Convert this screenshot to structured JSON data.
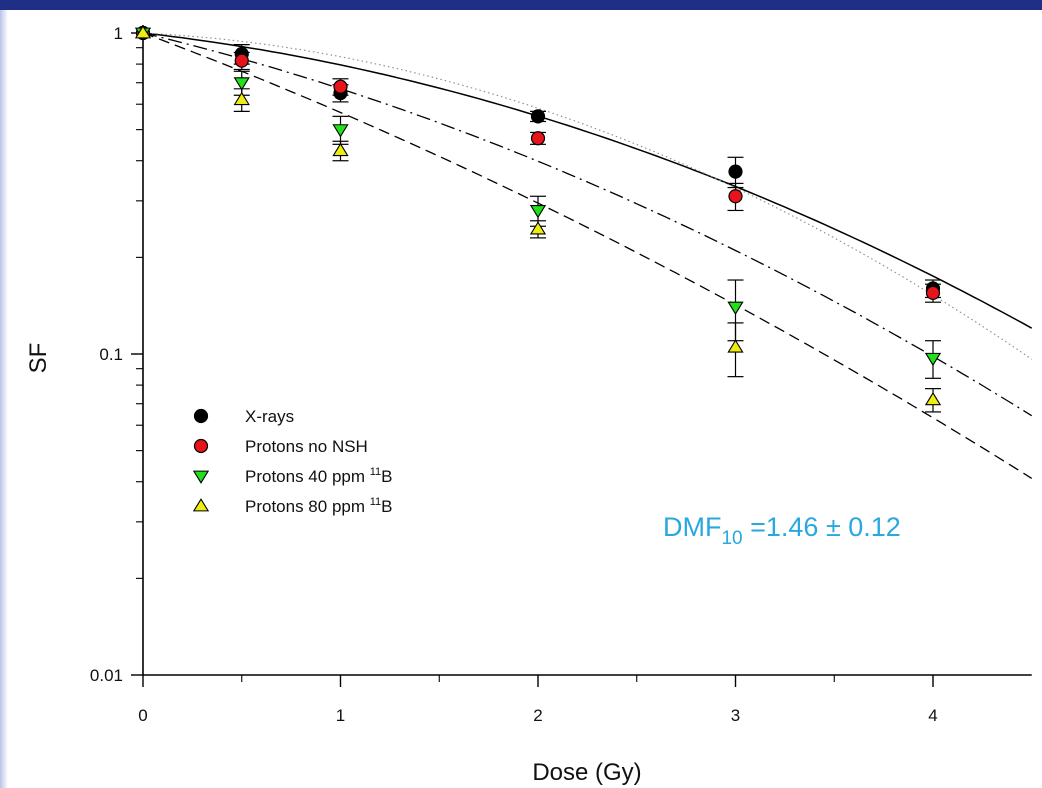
{
  "chart_data": {
    "type": "scatter",
    "xlabel": "Dose (Gy)",
    "ylabel": "SF",
    "xlim": [
      0,
      4.5
    ],
    "ylim": [
      0.01,
      1
    ],
    "yscale": "log",
    "x_ticks": [
      {
        "value": 0,
        "label": "0"
      },
      {
        "value": 1,
        "label": "1"
      },
      {
        "value": 2,
        "label": "2"
      },
      {
        "value": 3,
        "label": "3"
      },
      {
        "value": 4,
        "label": "4"
      }
    ],
    "y_ticks": [
      {
        "value": 1,
        "label": "1"
      },
      {
        "value": 0.1,
        "label": "0.1"
      },
      {
        "value": 0.01,
        "label": "0.01"
      }
    ],
    "legend_position": "left-center",
    "grid": false,
    "series": [
      {
        "name": "X-rays",
        "marker": "circle",
        "color": "#000000",
        "points": [
          {
            "x": 0,
            "y": 1.0,
            "err": 0
          },
          {
            "x": 0.5,
            "y": 0.86,
            "err": 0.06
          },
          {
            "x": 1,
            "y": 0.65,
            "err": 0.04
          },
          {
            "x": 2,
            "y": 0.55,
            "err": 0.02
          },
          {
            "x": 3,
            "y": 0.37,
            "err": 0.04
          },
          {
            "x": 4,
            "y": 0.16,
            "err": 0.01
          }
        ]
      },
      {
        "name": "Protons no NSH",
        "marker": "circle",
        "color": "#e8141b",
        "points": [
          {
            "x": 0,
            "y": 1.0,
            "err": 0
          },
          {
            "x": 0.5,
            "y": 0.82,
            "err": 0.05
          },
          {
            "x": 1,
            "y": 0.68,
            "err": 0.04
          },
          {
            "x": 2,
            "y": 0.47,
            "err": 0.02
          },
          {
            "x": 3,
            "y": 0.31,
            "err": 0.03
          },
          {
            "x": 4,
            "y": 0.155,
            "err": 0.01
          }
        ]
      },
      {
        "name": "Protons 40 ppm ¹¹B",
        "marker": "triangle-down",
        "color": "#22e01a",
        "points": [
          {
            "x": 0,
            "y": 1.0,
            "err": 0
          },
          {
            "x": 0.5,
            "y": 0.7,
            "err": 0.06
          },
          {
            "x": 1,
            "y": 0.5,
            "err": 0.05
          },
          {
            "x": 2,
            "y": 0.28,
            "err": 0.03
          },
          {
            "x": 3,
            "y": 0.14,
            "err": 0.03
          },
          {
            "x": 4,
            "y": 0.097,
            "err": 0.013
          }
        ]
      },
      {
        "name": "Protons 80 ppm ¹¹B",
        "marker": "triangle-up",
        "color": "#ecee12",
        "points": [
          {
            "x": 0,
            "y": 1.0,
            "err": 0
          },
          {
            "x": 0.5,
            "y": 0.62,
            "err": 0.05
          },
          {
            "x": 1,
            "y": 0.43,
            "err": 0.03
          },
          {
            "x": 2,
            "y": 0.245,
            "err": 0.015
          },
          {
            "x": 3,
            "y": 0.105,
            "err": 0.02
          },
          {
            "x": 4,
            "y": 0.072,
            "err": 0.006
          }
        ]
      }
    ],
    "fits": [
      {
        "style": "solid",
        "alpha": 0.16,
        "beta": 0.069
      },
      {
        "style": "dotted",
        "alpha": 0.07,
        "beta": 0.1
      },
      {
        "style": "dash-dot",
        "alpha": 0.34,
        "beta": 0.06
      },
      {
        "style": "dashed",
        "alpha": 0.53,
        "beta": 0.04
      }
    ],
    "annotation": {
      "text": "DMF",
      "subscript": "10",
      "suffix": " =1.46 ± 0.12",
      "color": "#29a8e0"
    }
  }
}
